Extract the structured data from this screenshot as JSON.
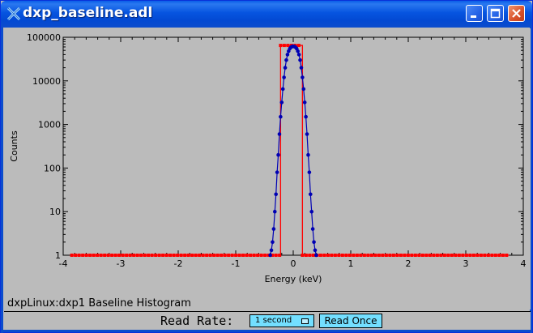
{
  "window": {
    "title": "dxp_baseline.adl"
  },
  "titlebar_buttons": {
    "minimize": "minimize-icon",
    "maximize": "maximize-icon",
    "close": "close-icon"
  },
  "plot": {
    "caption": "dxpLinux:dxp1 Baseline Histogram"
  },
  "controls": {
    "read_rate_label": "Read Rate:",
    "read_rate_value": "1 second",
    "read_once_label": "Read Once"
  },
  "colors": {
    "titlebar": "#0654e0",
    "plot_bg": "#bbbbbb",
    "series_histogram": "#0000b4",
    "series_range": "#ff0000",
    "menu_bg": "#73dfff"
  },
  "chart_data": {
    "type": "scatter",
    "xlabel": "Energy (keV)",
    "ylabel": "Counts",
    "xlim": [
      -4,
      4
    ],
    "ylim": [
      1,
      100000
    ],
    "yscale": "log",
    "xticks": [
      "-4",
      "-3",
      "-2",
      "-1",
      "0",
      "1",
      "2",
      "3",
      "4"
    ],
    "yticks": [
      "1",
      "10",
      "100",
      "1000",
      "10000",
      "100000"
    ],
    "grid": false,
    "legend": "none",
    "series": [
      {
        "color": "#0000b4",
        "points": [
          [
            -0.4,
            1
          ],
          [
            -0.38,
            1.3
          ],
          [
            -0.36,
            2
          ],
          [
            -0.34,
            4
          ],
          [
            -0.32,
            10
          ],
          [
            -0.3,
            25
          ],
          [
            -0.28,
            80
          ],
          [
            -0.26,
            200
          ],
          [
            -0.24,
            600
          ],
          [
            -0.22,
            1500
          ],
          [
            -0.2,
            3200
          ],
          [
            -0.18,
            6500
          ],
          [
            -0.16,
            12000
          ],
          [
            -0.14,
            20000
          ],
          [
            -0.12,
            30000
          ],
          [
            -0.1,
            40000
          ],
          [
            -0.08,
            48000
          ],
          [
            -0.06,
            55000
          ],
          [
            -0.04,
            59000
          ],
          [
            -0.02,
            61000
          ],
          [
            0.0,
            62000
          ],
          [
            0.02,
            61000
          ],
          [
            0.04,
            59000
          ],
          [
            0.06,
            55000
          ],
          [
            0.08,
            48000
          ],
          [
            0.1,
            40000
          ],
          [
            0.12,
            30000
          ],
          [
            0.14,
            20000
          ],
          [
            0.16,
            12000
          ],
          [
            0.18,
            6500
          ],
          [
            0.2,
            3200
          ],
          [
            0.22,
            1500
          ],
          [
            0.24,
            600
          ],
          [
            0.26,
            200
          ],
          [
            0.28,
            80
          ],
          [
            0.3,
            25
          ],
          [
            0.32,
            10
          ],
          [
            0.34,
            4
          ],
          [
            0.36,
            2
          ],
          [
            0.38,
            1.3
          ],
          [
            0.4,
            1
          ]
        ]
      },
      {
        "color": "#ff0000",
        "points": [
          [
            -3.85,
            1
          ],
          [
            -0.22,
            1
          ],
          [
            -0.22,
            65000
          ],
          [
            0.16,
            65000
          ],
          [
            0.16,
            1
          ],
          [
            3.75,
            1
          ]
        ]
      }
    ]
  }
}
